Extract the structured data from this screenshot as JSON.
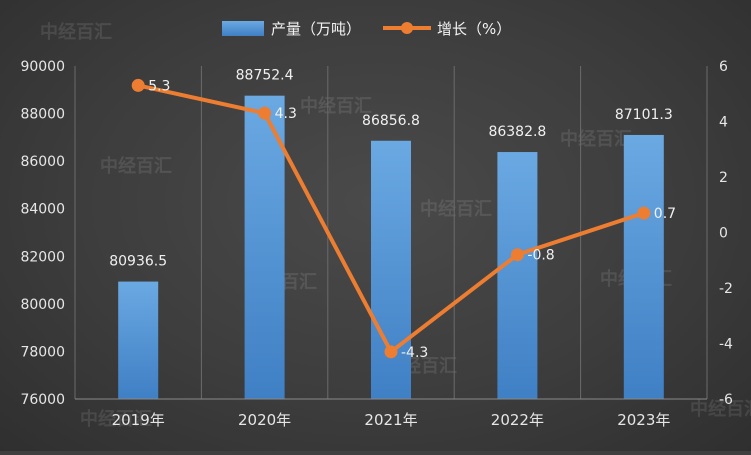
{
  "chart_data": {
    "type": "bar+line",
    "categories": [
      "2019年",
      "2020年",
      "2021年",
      "2022年",
      "2023年"
    ],
    "series": [
      {
        "name": "产量（万吨）",
        "type": "bar",
        "axis": "left",
        "values": [
          80936.5,
          88752.4,
          86856.8,
          86382.8,
          87101.3
        ]
      },
      {
        "name": "增长（%）",
        "type": "line",
        "axis": "right",
        "values": [
          5.3,
          4.3,
          -4.3,
          -0.8,
          0.7
        ]
      }
    ],
    "y_left": {
      "min": 76000,
      "max": 90000,
      "step": 2000
    },
    "y_right": {
      "min": -6,
      "max": 6,
      "step": 2
    },
    "legend_position": "top-center",
    "grid": "vertical",
    "colors": {
      "bar": "#5b9bd5",
      "line": "#ed7d31"
    },
    "watermark": "中经百汇"
  }
}
